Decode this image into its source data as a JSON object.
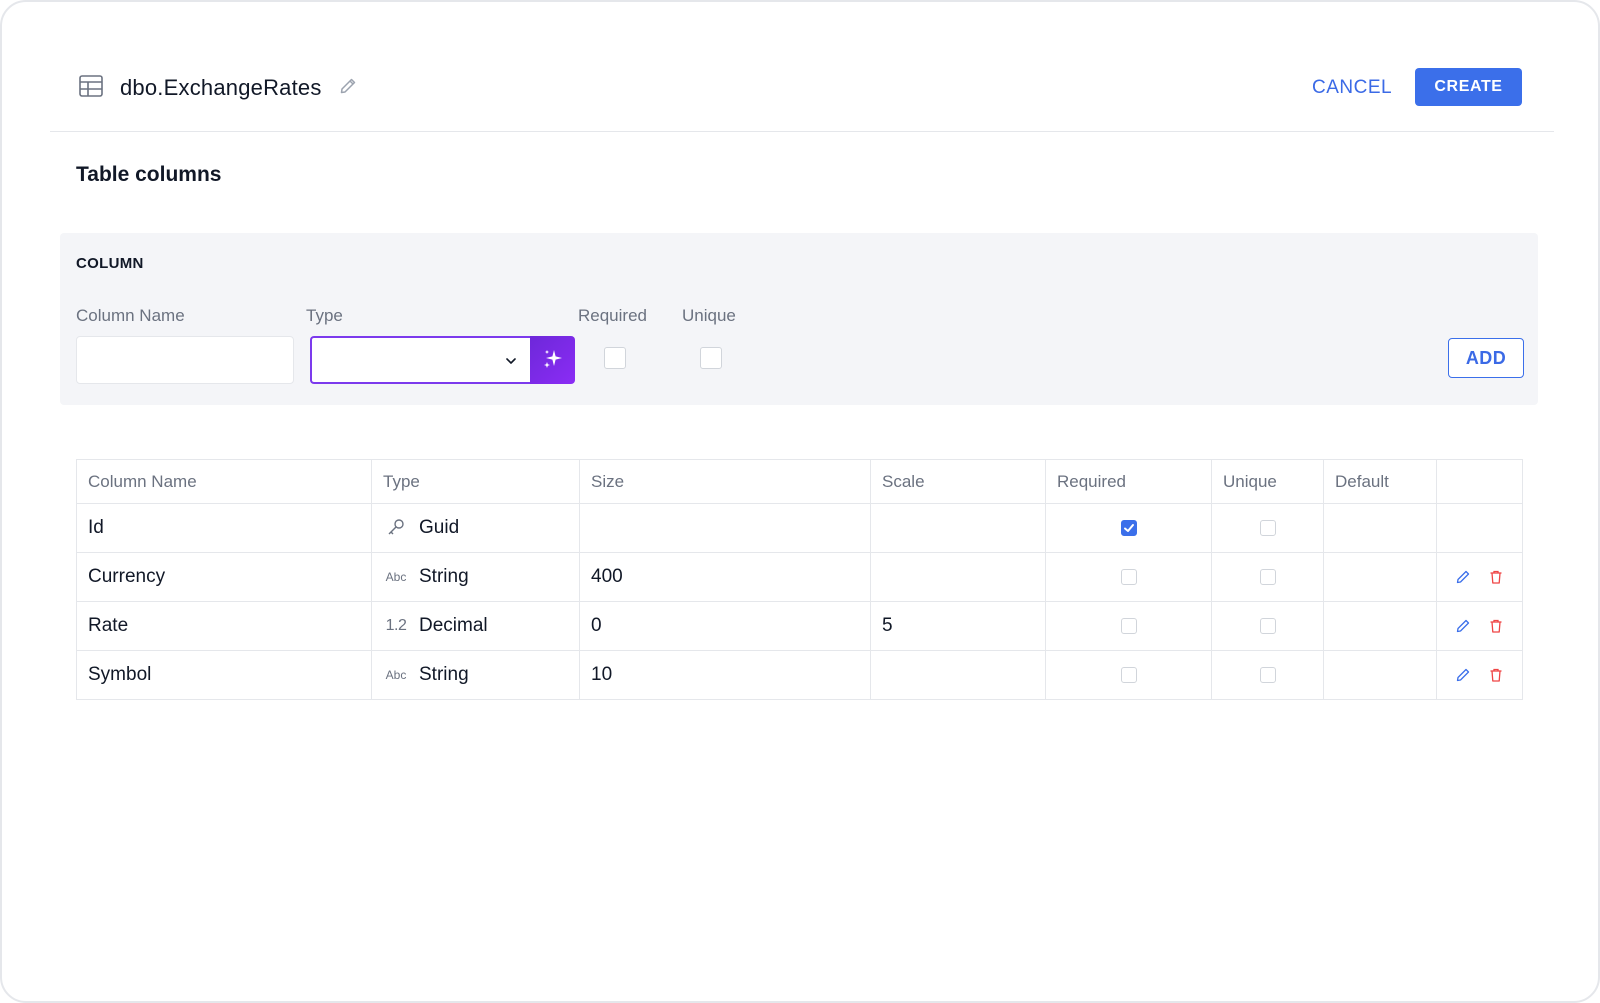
{
  "header": {
    "title": "dbo.ExchangeRates",
    "table_icon": "table-grid-icon",
    "edit_icon": "pencil-icon",
    "cancel_label": "CANCEL",
    "create_label": "CREATE"
  },
  "section_title": "Table columns",
  "form": {
    "heading": "COLUMN",
    "column_name_label": "Column Name",
    "column_name_value": "",
    "type_label": "Type",
    "type_value": "",
    "ai_icon": "sparkles-icon",
    "required_label": "Required",
    "required_checked": false,
    "unique_label": "Unique",
    "unique_checked": false,
    "add_label": "ADD"
  },
  "table": {
    "headers": [
      "Column Name",
      "Type",
      "Size",
      "Scale",
      "Required",
      "Unique",
      "Default",
      ""
    ],
    "rows": [
      {
        "name": "Id",
        "type_icon_text": "",
        "type_icon": "key-icon",
        "type": "Guid",
        "size": "",
        "scale": "",
        "required": true,
        "unique": false,
        "default": "",
        "actions": false
      },
      {
        "name": "Currency",
        "type_icon_text": "Abc",
        "type_icon": "text-abc-icon",
        "type": "String",
        "size": "400",
        "scale": "",
        "required": false,
        "unique": false,
        "default": "",
        "actions": true
      },
      {
        "name": "Rate",
        "type_icon_text": "1.2",
        "type_icon": "decimal-icon",
        "type": "Decimal",
        "size": "0",
        "scale": "5",
        "required": false,
        "unique": false,
        "default": "",
        "actions": true
      },
      {
        "name": "Symbol",
        "type_icon_text": "Abc",
        "type_icon": "text-abc-icon",
        "type": "String",
        "size": "10",
        "scale": "",
        "required": false,
        "unique": false,
        "default": "",
        "actions": true
      }
    ]
  },
  "colors": {
    "accent": "#3b6fea",
    "ai_purple": "#7c3aed",
    "delete_red": "#ef4444",
    "muted_text": "#6b7280"
  }
}
